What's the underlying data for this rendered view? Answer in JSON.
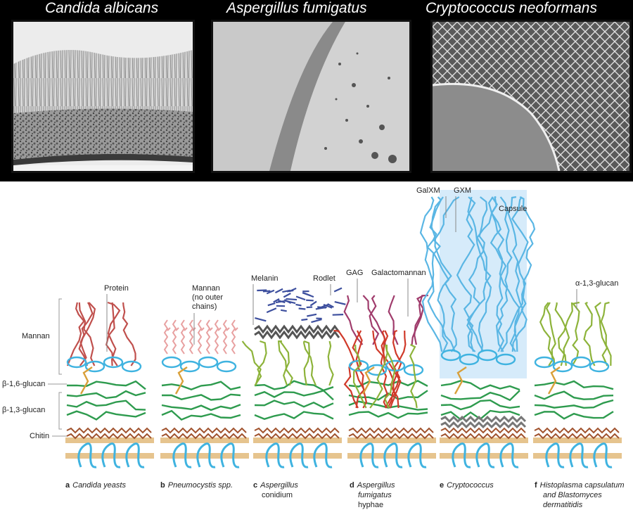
{
  "photos": [
    {
      "title": "Candida albicans"
    },
    {
      "title": "Aspergillus fumigatus"
    },
    {
      "title": "Cryptococcus neoformans"
    }
  ],
  "layers": {
    "mannan": "Mannan",
    "b16": "β-1,6-glucan",
    "b13": "β-1,3-glucan",
    "chitin": "Chitin"
  },
  "annotations": {
    "protein": "Protein",
    "mannan_no_outer_1": "Mannan",
    "mannan_no_outer_2": "(no outer",
    "mannan_no_outer_3": "chains)",
    "melanin": "Melanin",
    "rodlet": "Rodlet",
    "gag": "GAG",
    "galactomannan": "Galactomannan",
    "galxm": "GalXM",
    "gxm": "GXM",
    "capsule": "Capsule",
    "a13": "α-1,3-glucan"
  },
  "captions": [
    {
      "letter": "a",
      "lines": [
        "Candida yeasts"
      ]
    },
    {
      "letter": "b",
      "lines": [
        "Pneumocystis spp."
      ]
    },
    {
      "letter": "c",
      "lines": [
        "Aspergillus",
        "conidium"
      ]
    },
    {
      "letter": "d",
      "lines": [
        "Aspergillus",
        "fumigatus",
        "hyphae"
      ]
    },
    {
      "letter": "e",
      "lines": [
        "Cryptococcus"
      ]
    },
    {
      "letter": "f",
      "lines": [
        "Histoplasma capsulatum",
        "and Blastomyces",
        "dermatitidis"
      ]
    }
  ],
  "colors": {
    "mannan": "#c0504d",
    "mannan_light": "#e8a0a0",
    "b16": "#d9a03a",
    "b13": "#2e9b4e",
    "chitin": "#a0522d",
    "mannoprotein": "#3fb3e0",
    "melanin": "#3d4f9e",
    "rodlet": "#555555",
    "conidium_glucan": "#8db33a",
    "galactomannan": "#d03a2a",
    "gag": "#a03c6c",
    "capsule_bg": "#d6ebfa",
    "capsule": "#5ab6e4",
    "membrane": "#e6c48e"
  }
}
